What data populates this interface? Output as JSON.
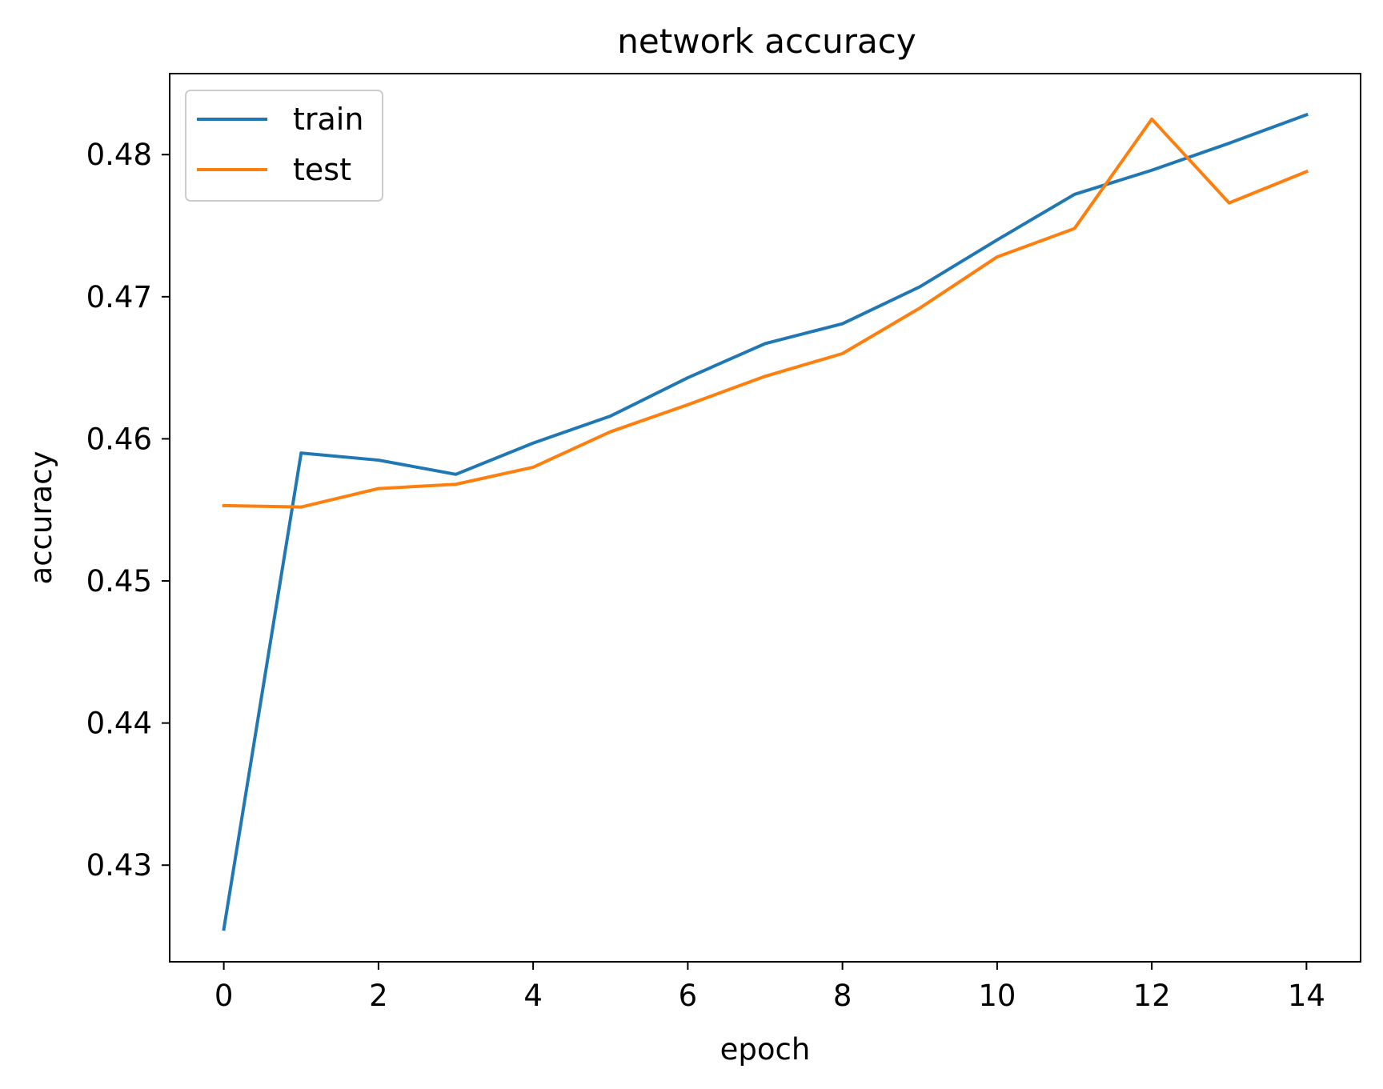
{
  "chart_data": {
    "type": "line",
    "title": "network accuracy",
    "xlabel": "epoch",
    "ylabel": "accuracy",
    "xlim": [
      -0.7,
      14.7
    ],
    "ylim": [
      0.4232,
      0.4857
    ],
    "xticks": [
      0,
      2,
      4,
      6,
      8,
      10,
      12,
      14
    ],
    "xtick_labels": [
      "0",
      "2",
      "4",
      "6",
      "8",
      "10",
      "12",
      "14"
    ],
    "yticks": [
      0.43,
      0.44,
      0.45,
      0.46,
      0.47,
      0.48
    ],
    "ytick_labels": [
      "0.43",
      "0.44",
      "0.45",
      "0.46",
      "0.47",
      "0.48"
    ],
    "grid": false,
    "legend_position": "upper-left",
    "x": [
      0,
      1,
      2,
      3,
      4,
      5,
      6,
      7,
      8,
      9,
      10,
      11,
      12,
      13,
      14
    ],
    "series": [
      {
        "name": "train",
        "color": "#1f77b4",
        "values": [
          0.4255,
          0.459,
          0.4585,
          0.4575,
          0.4597,
          0.4616,
          0.4643,
          0.4667,
          0.4681,
          0.4707,
          0.474,
          0.4772,
          0.4789,
          0.4808,
          0.4828
        ]
      },
      {
        "name": "test",
        "color": "#ff7f0e",
        "values": [
          0.4553,
          0.4552,
          0.4565,
          0.4568,
          0.458,
          0.4605,
          0.4624,
          0.4644,
          0.466,
          0.4692,
          0.4728,
          0.4748,
          0.4825,
          0.4766,
          0.4788
        ]
      }
    ]
  }
}
